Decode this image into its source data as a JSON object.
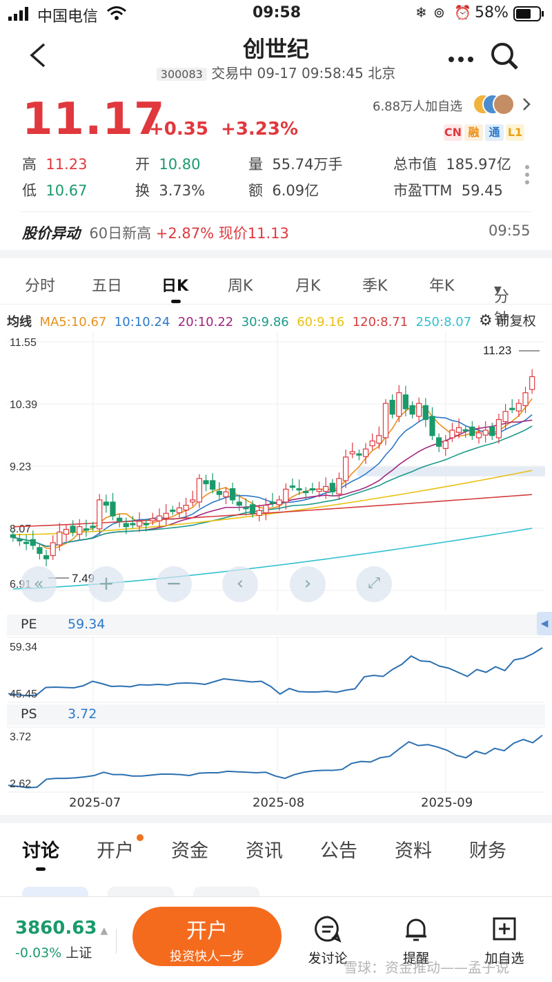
{
  "status": {
    "carrier": "中国电信",
    "time": "09:58",
    "battery": "58%"
  },
  "header": {
    "title": "创世纪",
    "code": "300083",
    "trade_info": "交易中 09-17 09:58:45 北京"
  },
  "quote": {
    "price": "11.17",
    "change": "+0.35",
    "change_pct": "+3.23%",
    "followers": "6.88万人加自选",
    "tags": [
      "CN",
      "融",
      "通",
      "L1"
    ],
    "high_label": "高",
    "high": "11.23",
    "open_label": "开",
    "open": "10.80",
    "volume_label": "量",
    "volume": "55.74万手",
    "mktcap_label": "总市值",
    "mktcap": "185.97亿",
    "low_label": "低",
    "low": "10.67",
    "turnover_label": "换",
    "turnover": "3.73%",
    "amount_label": "额",
    "amount": "6.09亿",
    "pe_label": "市盈TTM",
    "pe": "59.45"
  },
  "alert": {
    "title": "股价异动",
    "text_a": "60日新高",
    "text_b": "+2.87%",
    "text_c": "现价11.13",
    "time": "09:55"
  },
  "period_tabs": [
    "分时",
    "五日",
    "日K",
    "周K",
    "月K",
    "季K",
    "年K",
    "分钟"
  ],
  "active_period": "日K",
  "ma": {
    "label": "均线",
    "items": [
      {
        "text": "MA5:10.67",
        "color": "#e8901a"
      },
      {
        "text": "10:10.24",
        "color": "#2a78c8"
      },
      {
        "text": "20:10.22",
        "color": "#a0247c"
      },
      {
        "text": "30:9.86",
        "color": "#1a9a8a"
      },
      {
        "text": "60:9.16",
        "color": "#e8c010"
      },
      {
        "text": "120:8.71",
        "color": "#d43c3c"
      },
      {
        "text": "250:8.07",
        "color": "#30c0d0"
      }
    ],
    "adjust": "前复权"
  },
  "chart_data": [
    {
      "type": "candlestick",
      "y_ticks": [
        "11.55",
        "10.39",
        "9.23",
        "8.07",
        "6.91"
      ],
      "ylim": [
        6.91,
        11.55
      ],
      "max_label": "11.23",
      "min_label": "7.49",
      "x_ticks": [
        "2025-07",
        "2025-08",
        "2025-09"
      ],
      "closes": [
        7.9,
        7.85,
        7.8,
        7.75,
        7.6,
        7.5,
        7.8,
        8.0,
        8.05,
        8.0,
        8.1,
        8.05,
        8.1,
        8.6,
        8.5,
        8.3,
        8.2,
        8.1,
        8.15,
        8.2,
        8.15,
        8.25,
        8.3,
        8.35,
        8.4,
        8.45,
        8.5,
        8.6,
        9.0,
        8.9,
        8.8,
        8.7,
        8.75,
        8.6,
        8.5,
        8.45,
        8.35,
        8.4,
        8.5,
        8.55,
        8.6,
        8.8,
        8.85,
        8.8,
        8.75,
        8.8,
        8.8,
        8.85,
        8.75,
        9.0,
        9.4,
        9.5,
        9.45,
        9.55,
        9.7,
        9.8,
        10.4,
        10.2,
        10.6,
        10.3,
        10.2,
        10.4,
        10.1,
        9.8,
        9.6,
        9.7,
        9.9,
        9.95,
        9.9,
        9.8,
        9.85,
        9.9,
        9.8,
        10.1,
        10.25,
        10.3,
        10.4,
        10.6,
        10.9
      ]
    },
    {
      "type": "line",
      "name": "PE",
      "current": "59.34",
      "y_ticks": [
        "59.34",
        "45.45"
      ],
      "values": [
        46,
        45.7,
        45.4,
        45.6,
        47.8,
        47.9,
        47.8,
        47.7,
        48.3,
        49.6,
        48.9,
        48.1,
        48.2,
        48.0,
        48.6,
        48.5,
        48.7,
        48.5,
        49.0,
        49.1,
        49.0,
        48.7,
        49.5,
        50.3,
        50.0,
        49.7,
        49.4,
        49.6,
        48.1,
        45.9,
        47.5,
        46.6,
        46.5,
        46.5,
        46.7,
        46.4,
        47.0,
        47.4,
        50.9,
        51.3,
        51.0,
        53.0,
        54.5,
        56.9,
        55.5,
        55.3,
        54.0,
        53.4,
        52.2,
        51.0,
        53.0,
        52.2,
        53.8,
        52.7,
        55.8,
        56.3,
        57.6,
        59.3
      ]
    },
    {
      "type": "line",
      "name": "PS",
      "current": "3.72",
      "y_ticks": [
        "3.72",
        "2.62"
      ],
      "values": [
        2.65,
        2.63,
        2.6,
        2.61,
        2.78,
        2.8,
        2.8,
        2.81,
        2.83,
        2.86,
        2.93,
        2.88,
        2.88,
        2.85,
        2.85,
        2.87,
        2.89,
        2.89,
        2.88,
        2.86,
        2.91,
        2.92,
        2.92,
        2.95,
        2.94,
        2.93,
        2.92,
        2.93,
        2.85,
        2.8,
        2.88,
        2.93,
        2.96,
        2.97,
        2.97,
        2.99,
        3.12,
        3.16,
        3.15,
        3.24,
        3.27,
        3.43,
        3.58,
        3.5,
        3.52,
        3.47,
        3.4,
        3.29,
        3.24,
        3.38,
        3.32,
        3.44,
        3.39,
        3.55,
        3.63,
        3.56,
        3.72
      ]
    }
  ],
  "content_tabs": [
    "讨论",
    "开户",
    "资金",
    "资讯",
    "公告",
    "资料",
    "财务"
  ],
  "footer": {
    "index_value": "3860.63",
    "index_change": "-0.03%",
    "index_name": "上证",
    "open_account": "开户",
    "open_sub": "投资快人一步",
    "discuss": "发讨论",
    "remind": "提醒",
    "add_watch": "加自选",
    "watermark": "雪球：资金推动——孟子说"
  }
}
